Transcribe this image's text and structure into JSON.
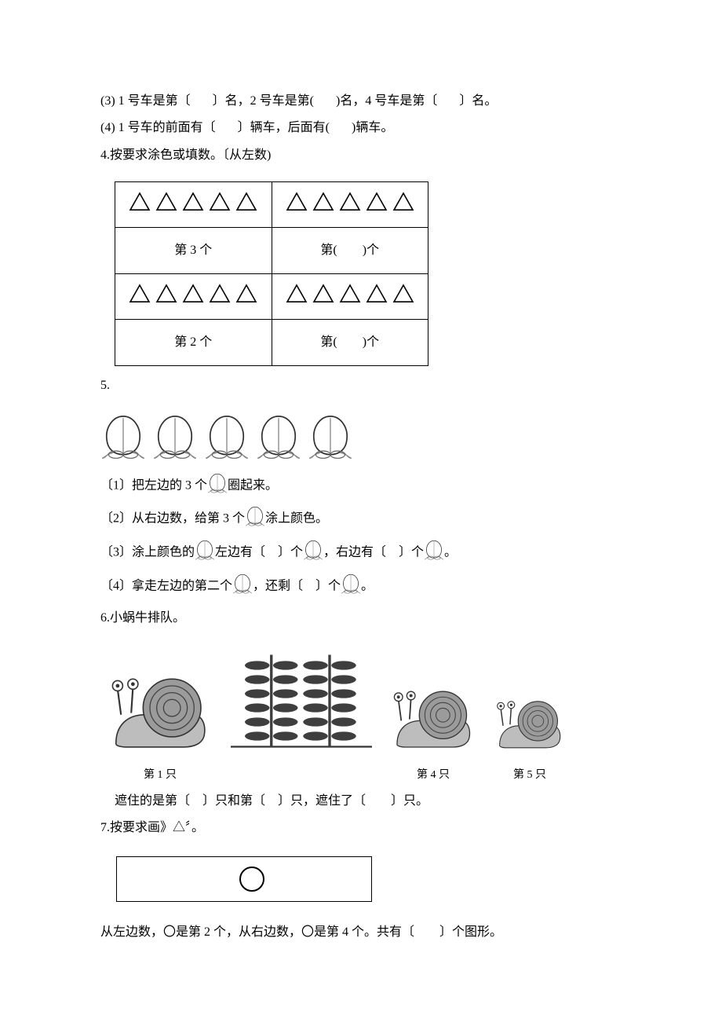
{
  "q3_3": {
    "text_a": "(3) 1 号车是第〔",
    "text_b": "〕名，2 号车是第(",
    "text_c": ")名，4 号车是第〔",
    "text_d": "〕名。"
  },
  "q3_4": {
    "text_a": "(4) 1 号车的前面有〔",
    "text_b": "〕辆车，后面有(",
    "text_c": ")辆车。"
  },
  "q4": {
    "prompt": "4.按要求涂色或填数。〔从左数)",
    "rows": [
      {
        "tri_count": 5,
        "label": "第 3 个",
        "tri_count_b": 5,
        "label_b": "第(　　)个"
      },
      {
        "tri_count": 5,
        "label": "第 2 个",
        "tri_count_b": 5,
        "label_b": "第(　　)个"
      }
    ],
    "outline_color": "#000000",
    "background": "#ffffff"
  },
  "q5": {
    "prompt": "5.",
    "peach_count": 5,
    "peach_color": "#cccccc",
    "leaf_color": "#888888",
    "items": {
      "l1_a": "〔1〕把左边的 3 个",
      "l1_b": "圈起来。",
      "l2_a": "〔2〕从右边数，给第 3 个",
      "l2_b": "涂上颜色。",
      "l3_a": "〔3〕涂上颜色的",
      "l3_b": "左边有〔　〕个",
      "l3_c": "，右边有〔　〕个",
      "l3_d": "。",
      "l4_a": "〔4〕拿走左边的第二个",
      "l4_b": "，还剩〔　〕个",
      "l4_c": "。"
    }
  },
  "q6": {
    "prompt": "6.小蜗牛排队。",
    "items": [
      {
        "type": "snail",
        "label": "第 1 只"
      },
      {
        "type": "plants",
        "label": ""
      },
      {
        "type": "snail",
        "label": "第 4 只"
      },
      {
        "type": "snail",
        "label": "第 5 只"
      }
    ],
    "fill": "遮住的是第〔　〕只和第〔　〕只，遮住了〔　　〕只。",
    "snail_body": "#bdbdbd",
    "snail_shell": "#9b9b9b",
    "plant_color": "#3e3e3e"
  },
  "q7": {
    "prompt": "7.按要求画》△〞。",
    "box_circle_r": 16,
    "final_a": "从左边数，〇是第 2 个，从右边数，〇是第 4 个。共有〔　　〕个图形。"
  }
}
